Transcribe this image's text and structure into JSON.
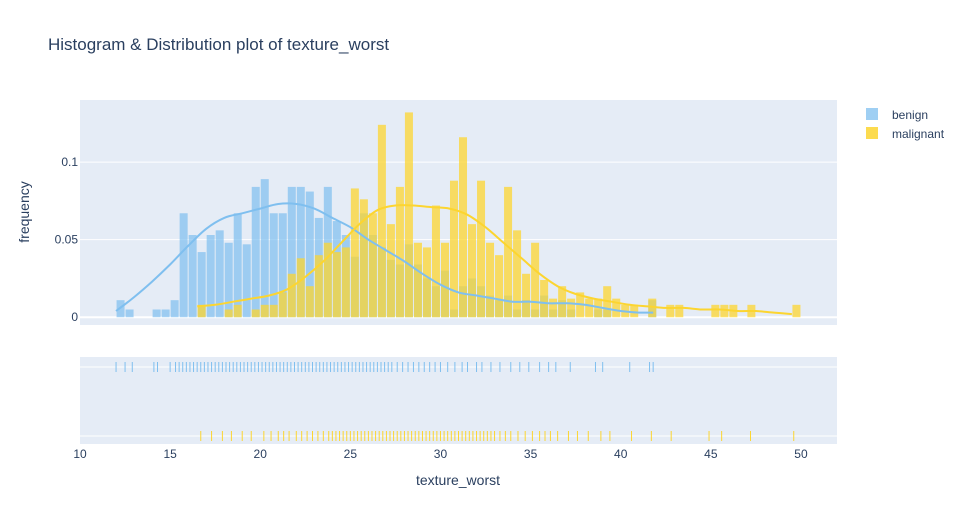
{
  "chart_data": {
    "type": "histogram",
    "title": "Histogram & Distribution plot of texture_worst",
    "xlabel": "texture_worst",
    "ylabel": "frequency",
    "xlim": [
      10,
      52
    ],
    "ylim": [
      -0.005,
      0.14
    ],
    "x_ticks": [
      10,
      15,
      20,
      25,
      30,
      35,
      40,
      45,
      50
    ],
    "y_ticks": [
      {
        "value": 0,
        "label": "0"
      },
      {
        "value": 0.05,
        "label": "0.05"
      },
      {
        "value": 0.1,
        "label": "0.1"
      }
    ],
    "grid": true,
    "legend_position": "top-right",
    "bin_width": 0.5,
    "series": [
      {
        "name": "benign",
        "color": "#7fbfef",
        "bins": [
          [
            12,
            0.011
          ],
          [
            12.5,
            0.005
          ],
          [
            14,
            0.005
          ],
          [
            14.5,
            0.005
          ],
          [
            15,
            0.011
          ],
          [
            15.5,
            0.067
          ],
          [
            16,
            0.053
          ],
          [
            16.5,
            0.042
          ],
          [
            17,
            0.053
          ],
          [
            17.5,
            0.056
          ],
          [
            18,
            0.048
          ],
          [
            18.5,
            0.067
          ],
          [
            19,
            0.047
          ],
          [
            19.5,
            0.084
          ],
          [
            20,
            0.089
          ],
          [
            20.5,
            0.067
          ],
          [
            21,
            0.067
          ],
          [
            21.5,
            0.084
          ],
          [
            22,
            0.084
          ],
          [
            22.5,
            0.081
          ],
          [
            23,
            0.064
          ],
          [
            23.5,
            0.084
          ],
          [
            24,
            0.062
          ],
          [
            24.5,
            0.053
          ],
          [
            25,
            0.039
          ],
          [
            25.5,
            0.067
          ],
          [
            26,
            0.053
          ],
          [
            26.5,
            0.045
          ],
          [
            27,
            0.037
          ],
          [
            27.5,
            0.034
          ],
          [
            28,
            0.047
          ],
          [
            28.5,
            0.034
          ],
          [
            29,
            0.025
          ],
          [
            29.5,
            0.02
          ],
          [
            30,
            0.03
          ],
          [
            30.5,
            0.005
          ],
          [
            31,
            0.02
          ],
          [
            31.5,
            0.025
          ],
          [
            32,
            0.02
          ],
          [
            32.5,
            0.014
          ],
          [
            33,
            0.011
          ],
          [
            33.5,
            0.014
          ],
          [
            34,
            0.005
          ],
          [
            34.5,
            0.011
          ],
          [
            35,
            0.005
          ],
          [
            35.5,
            0.014
          ],
          [
            36,
            0.005
          ],
          [
            36.5,
            0.011
          ],
          [
            37,
            0.005
          ],
          [
            38.5,
            0.005
          ],
          [
            39,
            0.005
          ],
          [
            41.5,
            0.011
          ]
        ],
        "kde": [
          [
            12,
            0.004
          ],
          [
            13,
            0.013
          ],
          [
            14,
            0.023
          ],
          [
            15,
            0.034
          ],
          [
            16,
            0.046
          ],
          [
            17,
            0.057
          ],
          [
            18,
            0.064
          ],
          [
            19,
            0.067
          ],
          [
            20,
            0.07
          ],
          [
            21,
            0.073
          ],
          [
            22,
            0.073
          ],
          [
            23,
            0.07
          ],
          [
            24,
            0.064
          ],
          [
            25,
            0.058
          ],
          [
            26,
            0.05
          ],
          [
            27,
            0.043
          ],
          [
            28,
            0.036
          ],
          [
            29,
            0.028
          ],
          [
            30,
            0.021
          ],
          [
            31,
            0.016
          ],
          [
            32,
            0.014
          ],
          [
            33,
            0.012
          ],
          [
            34,
            0.01
          ],
          [
            35,
            0.01
          ],
          [
            36,
            0.009
          ],
          [
            37,
            0.009
          ],
          [
            38,
            0.008
          ],
          [
            39,
            0.006
          ],
          [
            40,
            0.004
          ],
          [
            41,
            0.003
          ],
          [
            41.8,
            0.003
          ]
        ],
        "rug": [
          12.0,
          12.5,
          12.9,
          14.1,
          14.3,
          15.0,
          15.3,
          15.5,
          15.7,
          15.9,
          16.1,
          16.3,
          16.5,
          16.7,
          16.9,
          17.1,
          17.3,
          17.5,
          17.7,
          17.9,
          18.1,
          18.3,
          18.5,
          18.7,
          18.9,
          19.1,
          19.3,
          19.5,
          19.7,
          19.9,
          20.1,
          20.3,
          20.5,
          20.7,
          20.9,
          21.1,
          21.3,
          21.5,
          21.7,
          21.9,
          22.1,
          22.3,
          22.5,
          22.7,
          22.9,
          23.1,
          23.3,
          23.5,
          23.7,
          23.9,
          24.1,
          24.3,
          24.5,
          24.7,
          24.9,
          25.1,
          25.3,
          25.5,
          25.7,
          25.9,
          26.1,
          26.3,
          26.5,
          26.7,
          26.9,
          27.1,
          27.3,
          27.6,
          27.9,
          28.2,
          28.5,
          28.8,
          29.1,
          29.4,
          29.7,
          30.0,
          30.4,
          30.8,
          31.2,
          31.5,
          32.0,
          32.3,
          32.8,
          33.3,
          33.9,
          34.4,
          34.9,
          35.5,
          36.0,
          36.4,
          37.2,
          38.6,
          39.0,
          40.5,
          41.6,
          41.8
        ]
      },
      {
        "name": "malignant",
        "color": "#fcd530",
        "bins": [
          [
            16.5,
            0.008
          ],
          [
            18,
            0.005
          ],
          [
            18.5,
            0.008
          ],
          [
            19.5,
            0.005
          ],
          [
            20,
            0.008
          ],
          [
            20.5,
            0.008
          ],
          [
            21,
            0.016
          ],
          [
            21.5,
            0.028
          ],
          [
            22,
            0.038
          ],
          [
            22.5,
            0.02
          ],
          [
            23,
            0.04
          ],
          [
            23.5,
            0.048
          ],
          [
            24,
            0.042
          ],
          [
            24.5,
            0.045
          ],
          [
            25,
            0.083
          ],
          [
            25.5,
            0.076
          ],
          [
            26,
            0.067
          ],
          [
            26.5,
            0.124
          ],
          [
            27,
            0.06
          ],
          [
            27.5,
            0.084
          ],
          [
            28,
            0.132
          ],
          [
            28.5,
            0.048
          ],
          [
            29,
            0.045
          ],
          [
            29.5,
            0.072
          ],
          [
            30,
            0.048
          ],
          [
            30.5,
            0.088
          ],
          [
            31,
            0.116
          ],
          [
            31.5,
            0.06
          ],
          [
            32,
            0.088
          ],
          [
            32.5,
            0.048
          ],
          [
            33,
            0.04
          ],
          [
            33.5,
            0.084
          ],
          [
            34,
            0.056
          ],
          [
            34.5,
            0.028
          ],
          [
            35,
            0.048
          ],
          [
            35.5,
            0.024
          ],
          [
            36,
            0.012
          ],
          [
            36.5,
            0.02
          ],
          [
            37,
            0.012
          ],
          [
            37.5,
            0.016
          ],
          [
            38,
            0.012
          ],
          [
            38.5,
            0.012
          ],
          [
            39,
            0.02
          ],
          [
            39.5,
            0.012
          ],
          [
            40,
            0.008
          ],
          [
            40.5,
            0.008
          ],
          [
            41.5,
            0.012
          ],
          [
            42.5,
            0.008
          ],
          [
            43,
            0.008
          ],
          [
            45,
            0.008
          ],
          [
            45.5,
            0.008
          ],
          [
            46,
            0.008
          ],
          [
            47,
            0.008
          ],
          [
            49.5,
            0.008
          ]
        ],
        "kde": [
          [
            16.5,
            0.007
          ],
          [
            17.5,
            0.008
          ],
          [
            18.5,
            0.01
          ],
          [
            19.5,
            0.012
          ],
          [
            20.5,
            0.014
          ],
          [
            21.5,
            0.018
          ],
          [
            22.5,
            0.026
          ],
          [
            23.5,
            0.036
          ],
          [
            24.5,
            0.048
          ],
          [
            25.5,
            0.06
          ],
          [
            26.5,
            0.069
          ],
          [
            27.5,
            0.072
          ],
          [
            28.5,
            0.072
          ],
          [
            29.5,
            0.071
          ],
          [
            30.5,
            0.07
          ],
          [
            31.5,
            0.066
          ],
          [
            32.5,
            0.058
          ],
          [
            33.5,
            0.048
          ],
          [
            34.5,
            0.038
          ],
          [
            35.5,
            0.028
          ],
          [
            36.5,
            0.02
          ],
          [
            37.5,
            0.015
          ],
          [
            38.5,
            0.012
          ],
          [
            39.5,
            0.01
          ],
          [
            40.5,
            0.008
          ],
          [
            41.5,
            0.007
          ],
          [
            42.5,
            0.006
          ],
          [
            43.5,
            0.006
          ],
          [
            44.5,
            0.005
          ],
          [
            45.5,
            0.005
          ],
          [
            46.5,
            0.004
          ],
          [
            47.5,
            0.004
          ],
          [
            48.5,
            0.003
          ],
          [
            49.5,
            0.002
          ]
        ],
        "rug": [
          16.7,
          17.3,
          17.9,
          18.4,
          19.0,
          19.5,
          20.2,
          20.6,
          21.0,
          21.3,
          21.6,
          22.0,
          22.3,
          22.6,
          22.9,
          23.2,
          23.5,
          23.8,
          24.0,
          24.2,
          24.4,
          24.6,
          24.8,
          25.0,
          25.2,
          25.4,
          25.6,
          25.8,
          26.0,
          26.2,
          26.4,
          26.6,
          26.8,
          27.0,
          27.2,
          27.4,
          27.6,
          27.8,
          28.0,
          28.2,
          28.4,
          28.6,
          28.8,
          29.0,
          29.2,
          29.4,
          29.6,
          29.8,
          30.0,
          30.2,
          30.4,
          30.6,
          30.8,
          31.0,
          31.2,
          31.4,
          31.6,
          31.8,
          32.0,
          32.2,
          32.4,
          32.6,
          32.8,
          33.0,
          33.3,
          33.6,
          33.9,
          34.3,
          34.7,
          35.1,
          35.5,
          35.8,
          36.1,
          36.5,
          37.1,
          37.6,
          38.2,
          38.9,
          39.4,
          40.6,
          41.7,
          42.8,
          44.9,
          45.6,
          47.2,
          49.6
        ]
      }
    ]
  }
}
